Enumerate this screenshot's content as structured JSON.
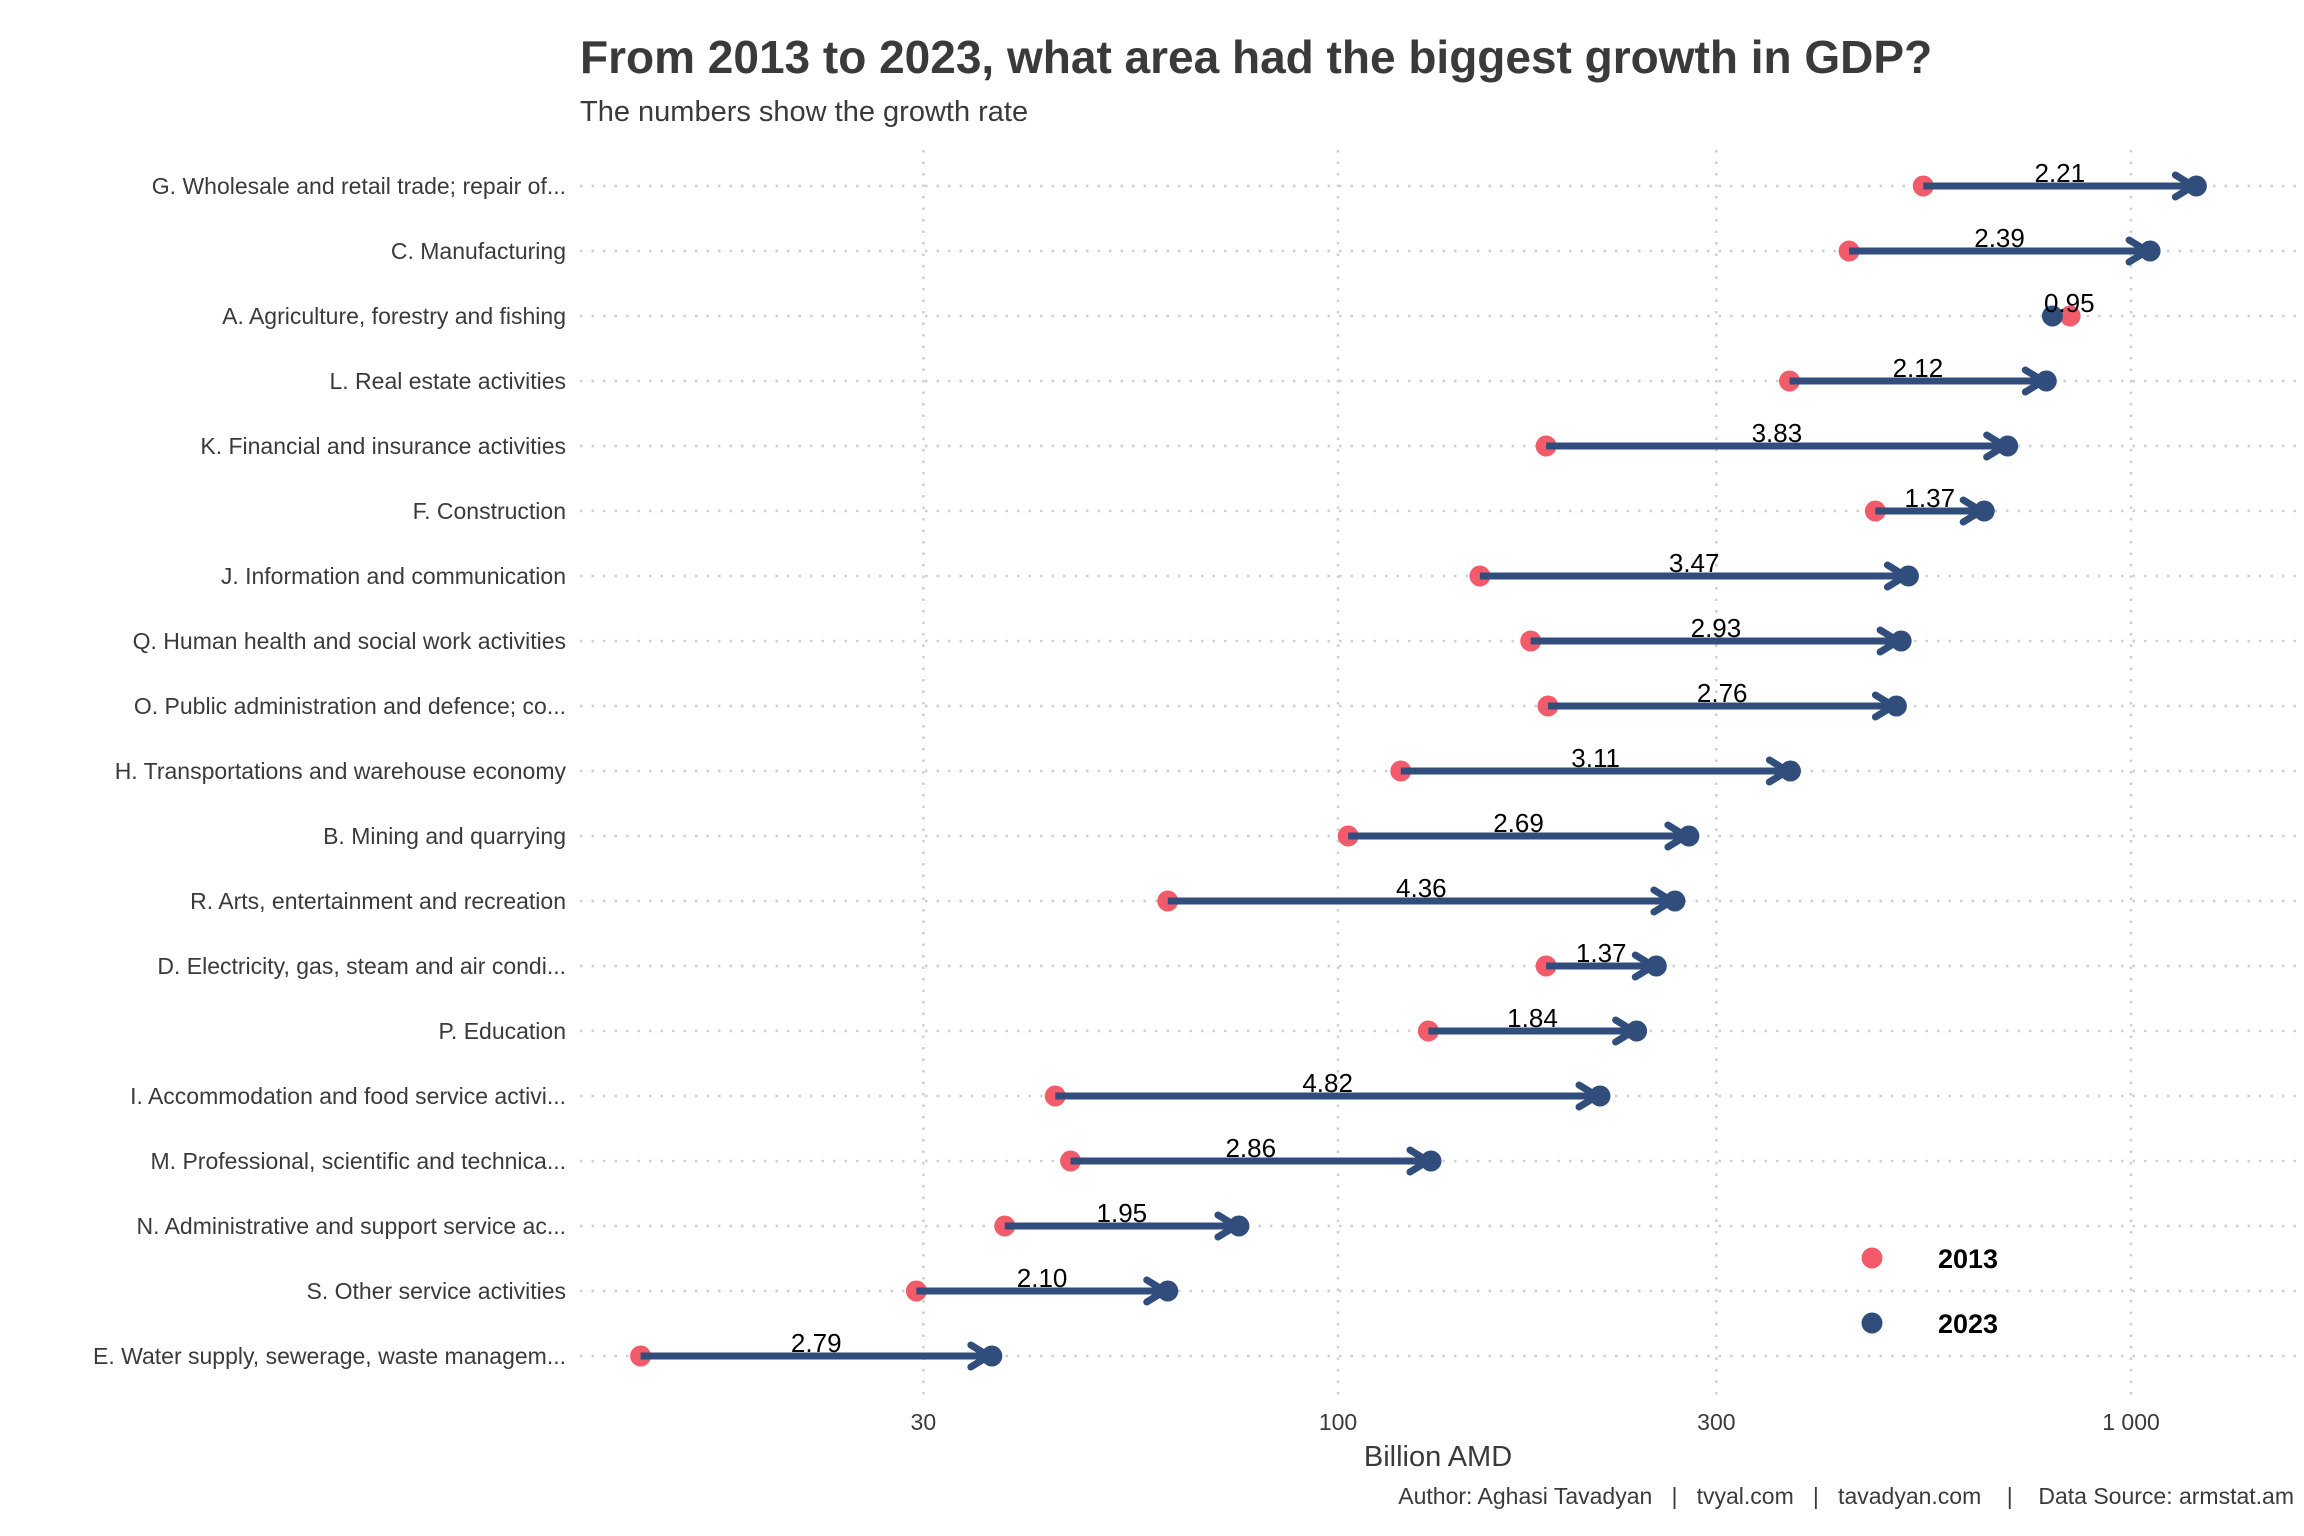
{
  "chart_data": {
    "type": "dumbbell-arrow",
    "title": "From 2013 to 2023, what area had the biggest growth in GDP?",
    "subtitle": "The numbers show the growth rate",
    "xlabel": "Billion AMD",
    "ylabel": "",
    "x_scale": "log10",
    "xlim": [
      11,
      1500
    ],
    "x_ticks": [
      30,
      100,
      300,
      1000
    ],
    "x_tick_labels": [
      "30",
      "100",
      "300",
      "1 000"
    ],
    "grid": "dotted",
    "legend": {
      "position": "bottom-right",
      "entries": [
        {
          "label": "2013",
          "color": "#F25C6A"
        },
        {
          "label": "2023",
          "color": "#304D7C"
        }
      ]
    },
    "colors": {
      "y2013": "#F25C6A",
      "y2023": "#304D7C",
      "arrow": "#304D7C"
    },
    "categories": [
      "G. Wholesale and retail trade; repair of...",
      "C. Manufacturing",
      "A. Agriculture, forestry and fishing",
      "L. Real estate activities",
      "K. Financial and insurance activities",
      "F. Construction",
      "J. Information and communication",
      "Q. Human health and social work activities",
      "O. Public administration and defence; co...",
      "H. Transportations and warehouse economy",
      "B. Mining and quarrying",
      "R. Arts, entertainment and recreation",
      "D. Electricity, gas, steam and air condi...",
      "P. Education",
      "I. Accommodation and food service activi...",
      "M. Professional, scientific and technica...",
      "N. Administrative and support service ac...",
      "S. Other service activities",
      "E. Water supply, sewerage, waste managem..."
    ],
    "series": [
      {
        "name": "2013",
        "values": [
          547,
          441,
          838,
          371,
          183,
          476,
          151,
          175,
          184,
          120,
          103,
          61,
          183,
          130,
          44,
          46,
          38,
          29.4,
          13.2
        ]
      },
      {
        "name": "2023",
        "values": [
          1209,
          1057,
          796,
          782,
          699,
          653,
          524,
          513,
          506,
          372,
          277,
          266,
          252,
          238,
          214,
          131,
          75,
          61,
          36.6
        ]
      }
    ],
    "growth_labels": [
      "2.21",
      "2.39",
      "0.95",
      "2.12",
      "3.83",
      "1.37",
      "3.47",
      "2.93",
      "2.76",
      "3.11",
      "2.69",
      "4.36",
      "1.37",
      "1.84",
      "4.82",
      "2.86",
      "1.95",
      "2.10",
      "2.79"
    ]
  },
  "caption": "Author: Aghasi Tavadyan   |   tvyal.com   |   tavadyan.com    |    Data Source: armstat.am"
}
